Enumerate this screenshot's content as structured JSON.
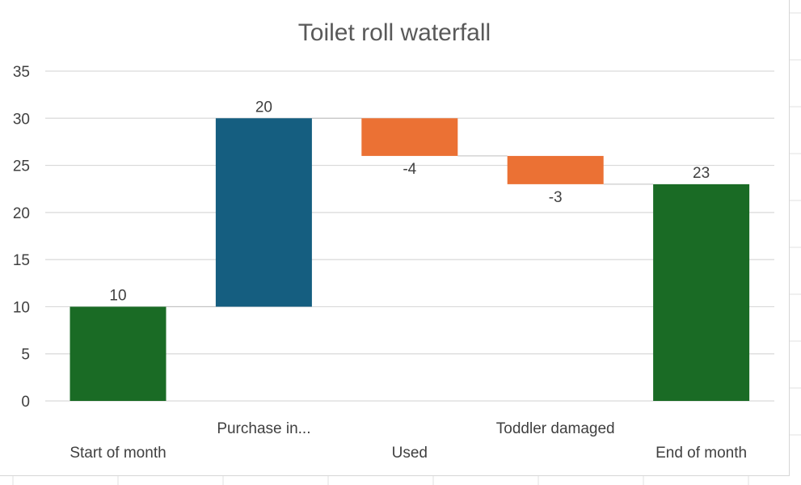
{
  "chart_data": {
    "type": "bar",
    "subtype": "waterfall",
    "title": "Toilet roll waterfall",
    "xlabel": "",
    "ylabel": "",
    "ylim": [
      0,
      35
    ],
    "yticks": [
      0,
      5,
      10,
      15,
      20,
      25,
      30,
      35
    ],
    "grid": true,
    "categories": [
      "Start of month",
      "Purchase in...",
      "Used",
      "Toddler damaged",
      "End of month"
    ],
    "values": [
      10,
      20,
      -4,
      -3,
      23
    ],
    "bar_kinds": [
      "total",
      "increase",
      "decrease",
      "decrease",
      "total"
    ],
    "data_labels": [
      "10",
      "20",
      "-4",
      "-3",
      "23"
    ],
    "colors": {
      "total": "#1a6b25",
      "increase": "#155e80",
      "decrease": "#eb7134",
      "gridline": "#d9d9d9",
      "text": "#404040",
      "title": "#595959"
    }
  }
}
